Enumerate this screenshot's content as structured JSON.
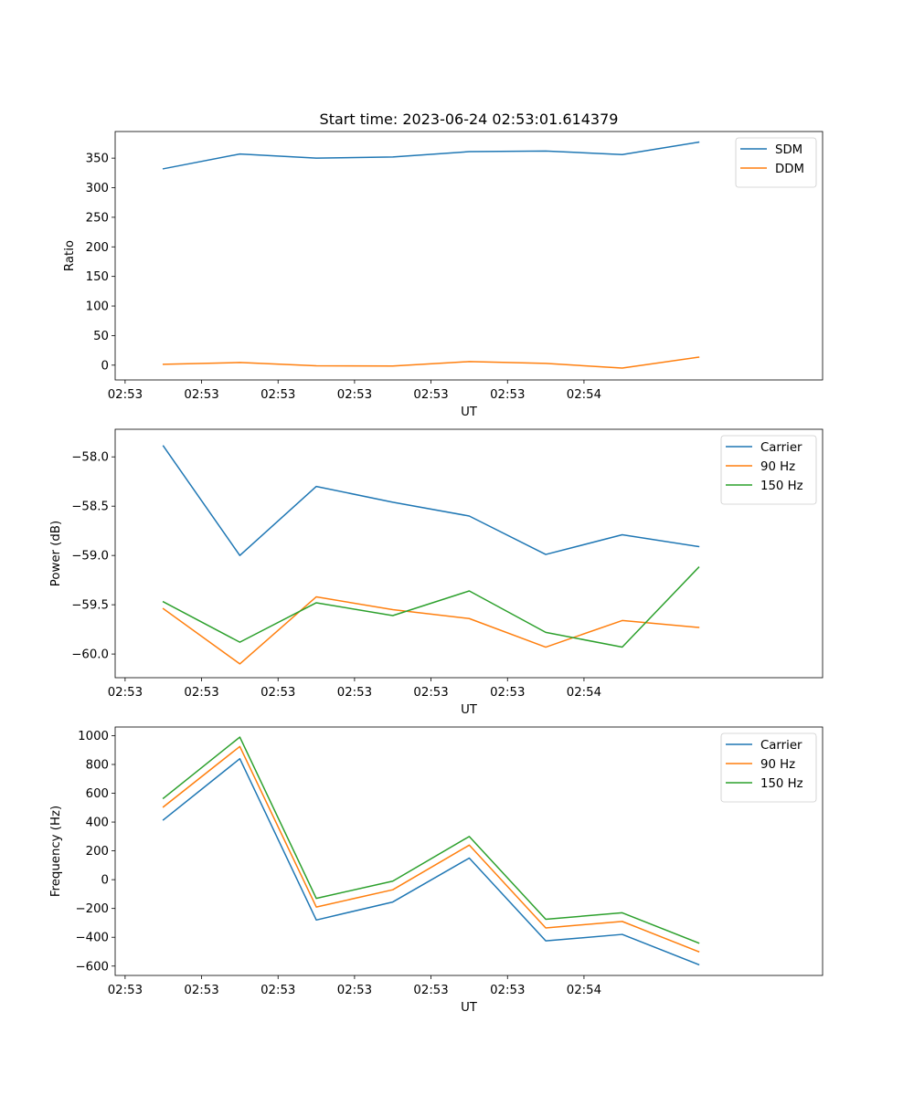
{
  "figure": {
    "title": "Start time: 2023-06-24 02:53:01.614379"
  },
  "chart_data": [
    {
      "type": "line",
      "title": "Start time: 2023-06-24 02:53:01.614379",
      "xlabel": "UT",
      "ylabel": "Ratio",
      "x": [
        "02:53",
        "02:53",
        "02:53",
        "02:53",
        "02:53",
        "02:53",
        "02:53",
        "02:53"
      ],
      "xticks": [
        "02:53",
        "02:53",
        "02:53",
        "02:53",
        "02:53",
        "02:53",
        "02:54"
      ],
      "xlim": [
        -0.63,
        8.62
      ],
      "yticks": [
        0,
        50,
        100,
        150,
        200,
        250,
        300,
        350
      ],
      "ylim": [
        -25,
        395
      ],
      "legend": "top-right",
      "grid": false,
      "series": [
        {
          "name": "SDM",
          "color": "#1f77b4",
          "values": [
            332,
            357,
            350,
            352,
            361,
            362,
            356,
            377
          ]
        },
        {
          "name": "DDM",
          "color": "#ff7f0e",
          "values": [
            1.5,
            4.5,
            -1,
            -1.5,
            6,
            3,
            -5,
            13.5
          ]
        }
      ]
    },
    {
      "type": "line",
      "xlabel": "UT",
      "ylabel": "Power (dB)",
      "x": [
        "02:53",
        "02:53",
        "02:53",
        "02:53",
        "02:53",
        "02:53",
        "02:53",
        "02:53"
      ],
      "xticks": [
        "02:53",
        "02:53",
        "02:53",
        "02:53",
        "02:53",
        "02:53",
        "02:54"
      ],
      "xlim": [
        -0.63,
        8.62
      ],
      "yticks": [
        -60.0,
        -59.5,
        -59.0,
        -58.5,
        -58.0
      ],
      "ytick_labels": [
        "−60.0",
        "−59.5",
        "−59.0",
        "−58.5",
        "−58.0"
      ],
      "ylim": [
        -60.24,
        -57.72
      ],
      "legend": "top-right",
      "grid": false,
      "series": [
        {
          "name": "Carrier",
          "color": "#1f77b4",
          "values": [
            -57.89,
            -59.0,
            -58.3,
            -58.46,
            -58.6,
            -58.99,
            -58.79,
            -58.91
          ]
        },
        {
          "name": "90 Hz",
          "color": "#ff7f0e",
          "values": [
            -59.54,
            -60.1,
            -59.42,
            -59.55,
            -59.64,
            -59.93,
            -59.66,
            -59.73
          ]
        },
        {
          "name": "150 Hz",
          "color": "#2ca02c",
          "values": [
            -59.47,
            -59.88,
            -59.48,
            -59.61,
            -59.36,
            -59.78,
            -59.93,
            -59.12
          ]
        }
      ]
    },
    {
      "type": "line",
      "xlabel": "UT",
      "ylabel": "Frequency (Hz)",
      "x": [
        "02:53",
        "02:53",
        "02:53",
        "02:53",
        "02:53",
        "02:53",
        "02:53",
        "02:53"
      ],
      "xticks": [
        "02:53",
        "02:53",
        "02:53",
        "02:53",
        "02:53",
        "02:53",
        "02:54"
      ],
      "xlim": [
        -0.63,
        8.62
      ],
      "yticks": [
        -600,
        -400,
        -200,
        0,
        200,
        400,
        600,
        800,
        1000
      ],
      "ytick_labels": [
        "−600",
        "−400",
        "−200",
        "0",
        "200",
        "400",
        "600",
        "800",
        "1000"
      ],
      "ylim": [
        -665,
        1060
      ],
      "legend": "top-right",
      "grid": false,
      "series": [
        {
          "name": "Carrier",
          "color": "#1f77b4",
          "values": [
            415,
            840,
            -280,
            -155,
            150,
            -425,
            -380,
            -590
          ]
        },
        {
          "name": "90 Hz",
          "color": "#ff7f0e",
          "values": [
            505,
            925,
            -190,
            -70,
            240,
            -335,
            -290,
            -500
          ]
        },
        {
          "name": "150 Hz",
          "color": "#2ca02c",
          "values": [
            565,
            990,
            -130,
            -10,
            300,
            -275,
            -230,
            -440
          ]
        }
      ]
    }
  ]
}
